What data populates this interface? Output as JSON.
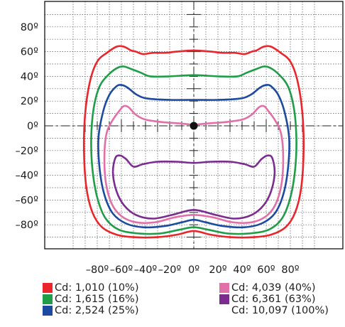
{
  "chart_data": {
    "type": "line",
    "title": "",
    "xlabel": "",
    "ylabel": "",
    "xlim": [
      -100,
      100
    ],
    "ylim": [
      -100,
      100
    ],
    "grid": true,
    "x_ticks": [
      "–80º",
      "–60º",
      "–40º",
      "–20º",
      "0º",
      "20º",
      "40º",
      "60º",
      "80º"
    ],
    "y_ticks": [
      "80º",
      "60º",
      "40º",
      "20º",
      "0º",
      "–20º",
      "–40º",
      "–60º",
      "–80º"
    ],
    "legend_placement": "bottom",
    "series": [
      {
        "name": "Cd: 1,010 (10%)",
        "color": "#e8262b",
        "points": [
          [
            -64,
            64
          ],
          [
            -58,
            64
          ],
          [
            -52,
            61
          ],
          [
            -48,
            60
          ],
          [
            -42,
            58
          ],
          [
            -34,
            59
          ],
          [
            -24,
            59
          ],
          [
            -14,
            60
          ],
          [
            0,
            61
          ],
          [
            14,
            60
          ],
          [
            24,
            59
          ],
          [
            34,
            59
          ],
          [
            42,
            58
          ],
          [
            48,
            60
          ],
          [
            52,
            61
          ],
          [
            58,
            64
          ],
          [
            64,
            64
          ],
          [
            72,
            59
          ],
          [
            80,
            52
          ],
          [
            86,
            36
          ],
          [
            90,
            10
          ],
          [
            91,
            -20
          ],
          [
            89,
            -50
          ],
          [
            84,
            -70
          ],
          [
            76,
            -82
          ],
          [
            64,
            -88
          ],
          [
            50,
            -90
          ],
          [
            30,
            -90
          ],
          [
            14,
            -88
          ],
          [
            0,
            -85
          ],
          [
            -14,
            -88
          ],
          [
            -30,
            -90
          ],
          [
            -50,
            -90
          ],
          [
            -64,
            -88
          ],
          [
            -76,
            -82
          ],
          [
            -84,
            -70
          ],
          [
            -89,
            -50
          ],
          [
            -91,
            -20
          ],
          [
            -90,
            10
          ],
          [
            -86,
            36
          ],
          [
            -80,
            52
          ],
          [
            -72,
            59
          ]
        ]
      },
      {
        "name": "Cd: 1,615 (16%)",
        "color": "#1f9d48",
        "points": [
          [
            -63,
            47
          ],
          [
            -58,
            48
          ],
          [
            -52,
            46
          ],
          [
            -44,
            43
          ],
          [
            -36,
            40
          ],
          [
            -20,
            40
          ],
          [
            0,
            41
          ],
          [
            20,
            40
          ],
          [
            36,
            40
          ],
          [
            44,
            43
          ],
          [
            52,
            46
          ],
          [
            58,
            48
          ],
          [
            63,
            47
          ],
          [
            70,
            42
          ],
          [
            78,
            32
          ],
          [
            83,
            14
          ],
          [
            85,
            -10
          ],
          [
            84,
            -35
          ],
          [
            80,
            -58
          ],
          [
            73,
            -75
          ],
          [
            62,
            -84
          ],
          [
            46,
            -87
          ],
          [
            28,
            -87
          ],
          [
            12,
            -84
          ],
          [
            0,
            -82
          ],
          [
            -12,
            -84
          ],
          [
            -28,
            -87
          ],
          [
            -46,
            -87
          ],
          [
            -62,
            -84
          ],
          [
            -73,
            -75
          ],
          [
            -80,
            -58
          ],
          [
            -84,
            -35
          ],
          [
            -85,
            -10
          ],
          [
            -83,
            14
          ],
          [
            -78,
            32
          ],
          [
            -70,
            42
          ]
        ]
      },
      {
        "name": "Cd: 2,524 (25%)",
        "color": "#1c4a9e",
        "points": [
          [
            -64,
            32
          ],
          [
            -60,
            33
          ],
          [
            -55,
            31
          ],
          [
            -47,
            25
          ],
          [
            -38,
            22
          ],
          [
            -20,
            21
          ],
          [
            0,
            21
          ],
          [
            20,
            21
          ],
          [
            38,
            22
          ],
          [
            47,
            25
          ],
          [
            55,
            31
          ],
          [
            60,
            33
          ],
          [
            64,
            32
          ],
          [
            70,
            25
          ],
          [
            75,
            12
          ],
          [
            79,
            -10
          ],
          [
            78,
            -35
          ],
          [
            74,
            -56
          ],
          [
            67,
            -71
          ],
          [
            56,
            -79
          ],
          [
            42,
            -82
          ],
          [
            24,
            -81
          ],
          [
            10,
            -78
          ],
          [
            0,
            -76
          ],
          [
            -10,
            -78
          ],
          [
            -24,
            -81
          ],
          [
            -42,
            -82
          ],
          [
            -56,
            -79
          ],
          [
            -67,
            -71
          ],
          [
            -74,
            -56
          ],
          [
            -78,
            -35
          ],
          [
            -79,
            -10
          ],
          [
            -75,
            12
          ],
          [
            -70,
            25
          ]
        ]
      },
      {
        "name": "Cd: 4,039 (40%)",
        "color": "#e070a8",
        "points": [
          [
            -61,
            13
          ],
          [
            -58,
            16
          ],
          [
            -54,
            15
          ],
          [
            -48,
            9
          ],
          [
            -40,
            5
          ],
          [
            -26,
            3
          ],
          [
            -12,
            2
          ],
          [
            0,
            1
          ],
          [
            12,
            2
          ],
          [
            26,
            3
          ],
          [
            40,
            5
          ],
          [
            48,
            9
          ],
          [
            54,
            15
          ],
          [
            58,
            16
          ],
          [
            61,
            13
          ],
          [
            67,
            5
          ],
          [
            72,
            -5
          ],
          [
            74,
            -22
          ],
          [
            73,
            -45
          ],
          [
            68,
            -63
          ],
          [
            60,
            -73
          ],
          [
            48,
            -78
          ],
          [
            32,
            -78
          ],
          [
            16,
            -74
          ],
          [
            0,
            -72
          ],
          [
            -16,
            -74
          ],
          [
            -32,
            -78
          ],
          [
            -48,
            -78
          ],
          [
            -60,
            -73
          ],
          [
            -68,
            -63
          ],
          [
            -73,
            -45
          ],
          [
            -74,
            -22
          ],
          [
            -72,
            -5
          ],
          [
            -67,
            5
          ]
        ]
      },
      {
        "name": "Cd: 6,361 (63%)",
        "color": "#7a2d8f",
        "points": [
          [
            -65,
            -26
          ],
          [
            -61,
            -24
          ],
          [
            -56,
            -27
          ],
          [
            -50,
            -33
          ],
          [
            -42,
            -31
          ],
          [
            -30,
            -29
          ],
          [
            -14,
            -29
          ],
          [
            0,
            -30
          ],
          [
            14,
            -29
          ],
          [
            30,
            -29
          ],
          [
            42,
            -31
          ],
          [
            50,
            -33
          ],
          [
            56,
            -27
          ],
          [
            61,
            -24
          ],
          [
            65,
            -26
          ],
          [
            67,
            -38
          ],
          [
            64,
            -53
          ],
          [
            58,
            -64
          ],
          [
            48,
            -72
          ],
          [
            34,
            -75
          ],
          [
            18,
            -72
          ],
          [
            0,
            -68
          ],
          [
            -18,
            -72
          ],
          [
            -34,
            -75
          ],
          [
            -48,
            -72
          ],
          [
            -58,
            -64
          ],
          [
            -64,
            -53
          ],
          [
            -67,
            -38
          ]
        ]
      },
      {
        "name": "Cd: 10,097 (100%)",
        "color": "#111111",
        "points": [
          [
            0,
            0
          ]
        ]
      }
    ]
  }
}
